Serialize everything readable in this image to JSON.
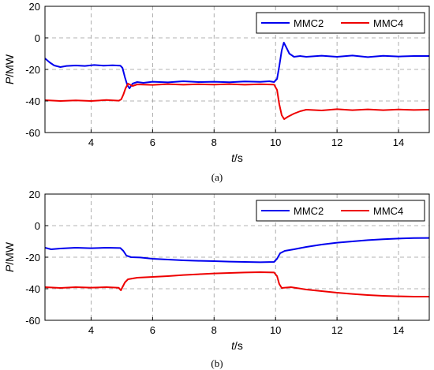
{
  "chart_data": [
    {
      "type": "line",
      "panel": "(a)",
      "xlabel_italic": "t",
      "xlabel_unit": "/s",
      "ylabel_italic": "P",
      "ylabel_unit": "/MW",
      "xlim": [
        2.5,
        15
      ],
      "ylim": [
        -60,
        20
      ],
      "xticks": [
        4,
        6,
        8,
        10,
        12,
        14
      ],
      "yticks": [
        20,
        0,
        -20,
        -40,
        -60
      ],
      "grid": true,
      "legend_position": "top-right",
      "series": [
        {
          "name": "MMC2",
          "color": "#0000ee",
          "points": [
            [
              2.5,
              -13
            ],
            [
              2.65,
              -15.5
            ],
            [
              2.8,
              -17.5
            ],
            [
              3.0,
              -18.5
            ],
            [
              3.2,
              -17.8
            ],
            [
              3.5,
              -17.5
            ],
            [
              3.8,
              -17.8
            ],
            [
              4.1,
              -17.2
            ],
            [
              4.4,
              -17.6
            ],
            [
              4.7,
              -17.4
            ],
            [
              4.95,
              -17.6
            ],
            [
              5.02,
              -19
            ],
            [
              5.1,
              -25
            ],
            [
              5.18,
              -30
            ],
            [
              5.25,
              -32
            ],
            [
              5.35,
              -29
            ],
            [
              5.5,
              -28
            ],
            [
              5.7,
              -28.5
            ],
            [
              6.0,
              -27.8
            ],
            [
              6.5,
              -28.2
            ],
            [
              7.0,
              -27.5
            ],
            [
              7.5,
              -28
            ],
            [
              8.0,
              -27.8
            ],
            [
              8.5,
              -28.1
            ],
            [
              9.0,
              -27.6
            ],
            [
              9.5,
              -27.9
            ],
            [
              9.8,
              -27.5
            ],
            [
              9.95,
              -28
            ],
            [
              10.05,
              -26
            ],
            [
              10.12,
              -18
            ],
            [
              10.2,
              -8
            ],
            [
              10.27,
              -3
            ],
            [
              10.35,
              -6
            ],
            [
              10.45,
              -10
            ],
            [
              10.6,
              -12
            ],
            [
              10.8,
              -11.5
            ],
            [
              11.0,
              -12
            ],
            [
              11.5,
              -11.3
            ],
            [
              12.0,
              -12
            ],
            [
              12.5,
              -11.2
            ],
            [
              13.0,
              -12.2
            ],
            [
              13.5,
              -11.4
            ],
            [
              14.0,
              -11.8
            ],
            [
              14.5,
              -11.5
            ],
            [
              15.0,
              -11.5
            ]
          ]
        },
        {
          "name": "MMC4",
          "color": "#ee0000",
          "points": [
            [
              2.5,
              -39.5
            ],
            [
              3.0,
              -40
            ],
            [
              3.5,
              -39.6
            ],
            [
              4.0,
              -40
            ],
            [
              4.5,
              -39.4
            ],
            [
              4.9,
              -39.8
            ],
            [
              4.98,
              -39
            ],
            [
              5.05,
              -36
            ],
            [
              5.12,
              -32
            ],
            [
              5.2,
              -29
            ],
            [
              5.35,
              -30.5
            ],
            [
              5.5,
              -29.5
            ],
            [
              6.0,
              -29.8
            ],
            [
              6.5,
              -29.3
            ],
            [
              7.0,
              -29.7
            ],
            [
              7.5,
              -29.4
            ],
            [
              8.0,
              -29.6
            ],
            [
              8.5,
              -29.3
            ],
            [
              9.0,
              -29.7
            ],
            [
              9.5,
              -29.4
            ],
            [
              9.95,
              -29.6
            ],
            [
              10.05,
              -33
            ],
            [
              10.12,
              -42
            ],
            [
              10.2,
              -49
            ],
            [
              10.28,
              -51.5
            ],
            [
              10.4,
              -50
            ],
            [
              10.6,
              -48
            ],
            [
              10.8,
              -46.5
            ],
            [
              11.0,
              -45.5
            ],
            [
              11.5,
              -46
            ],
            [
              12.0,
              -45.2
            ],
            [
              12.5,
              -45.8
            ],
            [
              13.0,
              -45.3
            ],
            [
              13.5,
              -45.8
            ],
            [
              14.0,
              -45.4
            ],
            [
              14.5,
              -45.7
            ],
            [
              15.0,
              -45.5
            ]
          ]
        }
      ]
    },
    {
      "type": "line",
      "panel": "(b)",
      "xlabel_italic": "t",
      "xlabel_unit": "/s",
      "ylabel_italic": "P",
      "ylabel_unit": "/MW",
      "xlim": [
        2.5,
        15
      ],
      "ylim": [
        -60,
        20
      ],
      "xticks": [
        4,
        6,
        8,
        10,
        12,
        14
      ],
      "yticks": [
        20,
        0,
        -20,
        -40,
        -60
      ],
      "grid": true,
      "legend_position": "top-right",
      "series": [
        {
          "name": "MMC2",
          "color": "#0000ee",
          "points": [
            [
              2.5,
              -14
            ],
            [
              2.7,
              -15
            ],
            [
              3.0,
              -14.5
            ],
            [
              3.5,
              -14
            ],
            [
              4.0,
              -14.3
            ],
            [
              4.5,
              -14
            ],
            [
              4.95,
              -14.2
            ],
            [
              5.05,
              -16
            ],
            [
              5.15,
              -19
            ],
            [
              5.3,
              -20
            ],
            [
              5.6,
              -20.2
            ],
            [
              6.0,
              -21
            ],
            [
              6.5,
              -21.5
            ],
            [
              7.0,
              -22
            ],
            [
              7.5,
              -22.3
            ],
            [
              8.0,
              -22.5
            ],
            [
              8.5,
              -22.8
            ],
            [
              9.0,
              -23
            ],
            [
              9.5,
              -23.2
            ],
            [
              9.95,
              -23
            ],
            [
              10.05,
              -21
            ],
            [
              10.15,
              -17.5
            ],
            [
              10.3,
              -16
            ],
            [
              10.6,
              -15
            ],
            [
              11.0,
              -13.5
            ],
            [
              11.5,
              -12
            ],
            [
              12.0,
              -10.8
            ],
            [
              12.5,
              -10
            ],
            [
              13.0,
              -9.2
            ],
            [
              13.5,
              -8.6
            ],
            [
              14.0,
              -8.2
            ],
            [
              14.5,
              -7.9
            ],
            [
              15.0,
              -7.8
            ]
          ]
        },
        {
          "name": "MMC4",
          "color": "#ee0000",
          "points": [
            [
              2.5,
              -39
            ],
            [
              3.0,
              -39.5
            ],
            [
              3.5,
              -39
            ],
            [
              4.0,
              -39.3
            ],
            [
              4.5,
              -39
            ],
            [
              4.9,
              -39.4
            ],
            [
              4.97,
              -41
            ],
            [
              5.02,
              -39
            ],
            [
              5.1,
              -36
            ],
            [
              5.2,
              -34
            ],
            [
              5.5,
              -33
            ],
            [
              6.0,
              -32.5
            ],
            [
              6.5,
              -32
            ],
            [
              7.0,
              -31.3
            ],
            [
              7.5,
              -30.8
            ],
            [
              8.0,
              -30.3
            ],
            [
              8.5,
              -30
            ],
            [
              9.0,
              -29.7
            ],
            [
              9.5,
              -29.5
            ],
            [
              9.95,
              -29.7
            ],
            [
              10.05,
              -32
            ],
            [
              10.12,
              -37
            ],
            [
              10.2,
              -39.5
            ],
            [
              10.5,
              -39
            ],
            [
              11.0,
              -40.5
            ],
            [
              11.5,
              -41.5
            ],
            [
              12.0,
              -42.5
            ],
            [
              12.5,
              -43.3
            ],
            [
              13.0,
              -44
            ],
            [
              13.5,
              -44.5
            ],
            [
              14.0,
              -44.8
            ],
            [
              14.5,
              -45
            ],
            [
              15.0,
              -45
            ]
          ]
        }
      ]
    }
  ]
}
